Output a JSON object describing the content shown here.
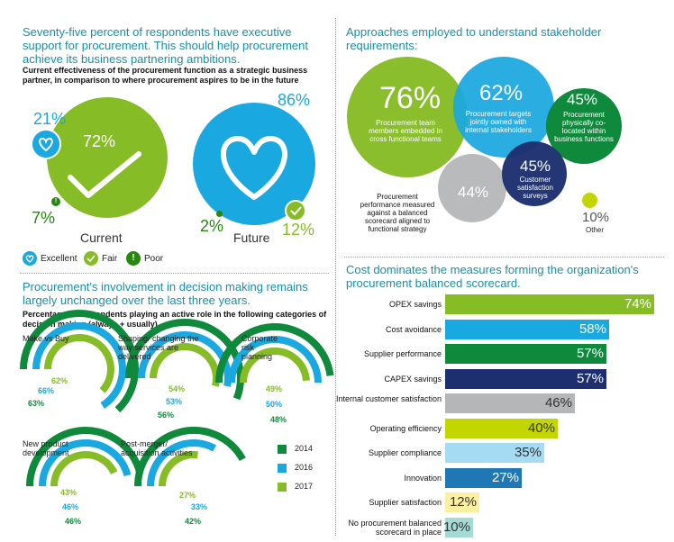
{
  "colors": {
    "teal_heading": "#1b8ea3",
    "light_green": "#86bc25",
    "mid_green": "#26890d",
    "dark_green": "#0f8a3c",
    "light_blue": "#1aa8e0",
    "dark_blue": "#1d2f6e",
    "grey": "#b4b6b8",
    "yellow_green": "#c4d600",
    "pale_blue": "#a6dcf3",
    "mid_blue": "#1f78b4",
    "pale_yellow": "#fbf0a0",
    "pale_teal": "#a6dad5"
  },
  "section1": {
    "heading": "Seventy-five percent of respondents have executive support for procurement. This should help procurement achieve its business partnering ambitions.",
    "subheading": "Current effectiveness of the procurement function as a strategic business partner, in comparison to where procurement aspires to be in the future",
    "current": {
      "label": "Current",
      "excellent": "21%",
      "fair": "72%",
      "poor": "7%"
    },
    "future": {
      "label": "Future",
      "excellent": "86%",
      "fair": "12%",
      "poor": "2%"
    },
    "legend": [
      {
        "label": "Excellent",
        "icon": "heart-icon",
        "color": "#1aa8e0"
      },
      {
        "label": "Fair",
        "icon": "check-icon",
        "color": "#86bc25"
      },
      {
        "label": "Poor",
        "icon": "exclamation-icon",
        "color": "#26890d"
      }
    ]
  },
  "section2": {
    "heading": "Procurement's involvement in decision making remains largely unchanged over the last three years.",
    "subheading": "Percentage of respondents playing an active role in the following categories of decision making (always + usually)",
    "categories": [
      {
        "label": "Make vs Buy",
        "v2017": "62%",
        "v2016": "66%",
        "v2014": "63%"
      },
      {
        "label": "Shaping/ changing the way services are delivered",
        "v2017": "54%",
        "v2016": "53%",
        "v2014": "56%"
      },
      {
        "label": "Corporate risk planning",
        "v2017": "49%",
        "v2016": "50%",
        "v2014": "48%"
      },
      {
        "label": "New product development",
        "v2017": "43%",
        "v2016": "46%",
        "v2014": "46%"
      },
      {
        "label": "Post-merger/ acquisition activities",
        "v2017": "27%",
        "v2016": "33%",
        "v2014": "42%"
      }
    ],
    "legend": [
      {
        "label": "2014",
        "color": "#0f8a3c"
      },
      {
        "label": "2016",
        "color": "#1aa8e0"
      },
      {
        "label": "2017",
        "color": "#86bc25"
      }
    ]
  },
  "section3": {
    "heading": "Approaches employed to understand stakeholder requirements:",
    "bubbles": {
      "b76": {
        "value": "76%",
        "text": "Procurement team members embedded in cross functional teams"
      },
      "b62": {
        "value": "62%",
        "text": "Procurement targets jointly owned with internal stakeholders"
      },
      "b45a": {
        "value": "45%",
        "text": "Procurement physically co-located within business functions"
      },
      "b45b": {
        "value": "45%",
        "text": "Customer satisfaction surveys"
      },
      "b44": {
        "value": "44%",
        "text": "Procurement performance measured against a balanced scorecard aligned to functional strategy"
      },
      "b10": {
        "value": "10%",
        "text": "Other"
      }
    }
  },
  "section4": {
    "heading": "Cost dominates the measures forming the organization's procurement balanced scorecard."
  },
  "chart_data": {
    "type": "bar",
    "title": "Cost dominates the measures forming the organization's procurement balanced scorecard.",
    "categories": [
      "OPEX savings",
      "Cost avoidance",
      "Supplier performance",
      "CAPEX savings",
      "Internal customer satisfaction",
      "Operating efficiency",
      "Supplier compliance",
      "Innovation",
      "Supplier satisfaction",
      "No procurement balanced scorecard in place"
    ],
    "values": [
      74,
      58,
      57,
      57,
      46,
      40,
      35,
      27,
      12,
      10
    ],
    "value_labels": [
      "74%",
      "58%",
      "57%",
      "57%",
      "46%",
      "40%",
      "35%",
      "27%",
      "12%",
      "10%"
    ],
    "bar_colors": [
      "#86bc25",
      "#1aa8e0",
      "#0f8a3c",
      "#1d2f6e",
      "#b4b6b8",
      "#c4d600",
      "#a6dcf3",
      "#1f78b4",
      "#fbf0a0",
      "#a6dad5"
    ],
    "value_colors": [
      "#ffffff",
      "#ffffff",
      "#ffffff",
      "#ffffff",
      "#333333",
      "#333333",
      "#333333",
      "#ffffff",
      "#333333",
      "#333333"
    ],
    "xlim": [
      0,
      100
    ],
    "grid": false,
    "orientation": "horizontal"
  }
}
